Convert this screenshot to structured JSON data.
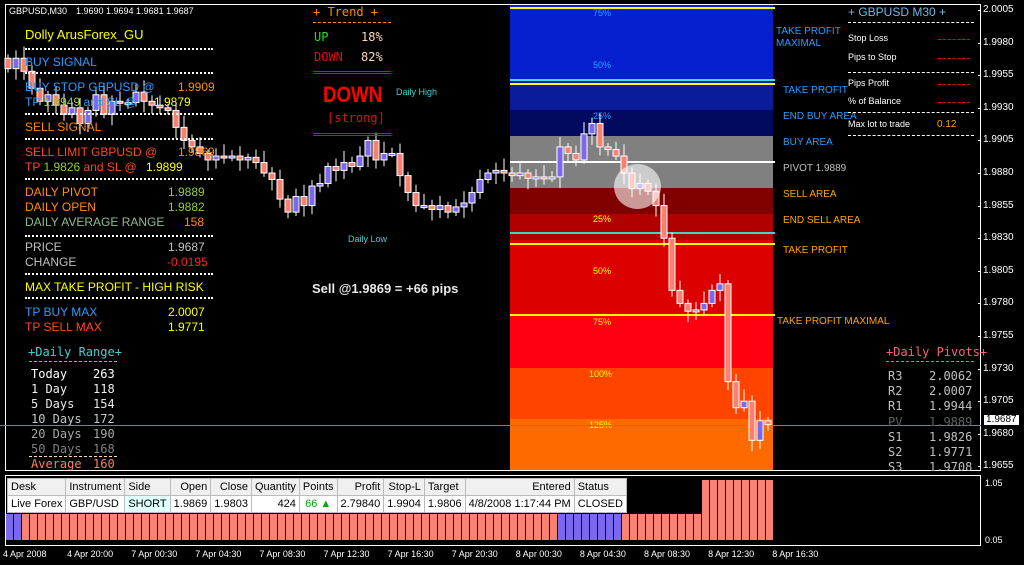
{
  "header": {
    "symbol": "GBPUSD,M30",
    "ohlc": "1.9690 1.9694 1.9681 1.9687"
  },
  "signals": {
    "title": "Dolly ArusForex_GU",
    "buy_signal": "BUY SIGNAL",
    "buy_stop_label": "BUY STOP GBPUSD  @",
    "buy_stop_value": "1.9909",
    "buy_tp_label": "TP",
    "buy_tp_value": "1.9949",
    "buy_sl_label": "and SL @",
    "buy_sl_value": "1.9879",
    "sell_signal": "SELL SIGNAL",
    "sell_limit_label": "SELL LIMIT GBPUSD  @",
    "sell_limit_value": "1.9869",
    "sell_tp_label": "TP",
    "sell_tp_value": "1.9826",
    "sell_sl_label": "and SL @",
    "sell_sl_value": "1.9899",
    "daily_pivot_label": "DAILY PIVOT",
    "daily_pivot": "1.9889",
    "daily_open_label": "DAILY OPEN",
    "daily_open": "1.9882",
    "dar_label": "DAILY AVERAGE RANGE",
    "dar": "158",
    "price_label": "PRICE",
    "price": "1.9687",
    "change_label": "CHANGE",
    "change": "-0.0195",
    "max_tp_label": "MAX TAKE PROFIT - HIGH RISK",
    "tp_buy_max_label": "TP BUY MAX",
    "tp_buy_max": "2.0007",
    "tp_sell_max_label": "TP SELL MAX",
    "tp_sell_max": "1.9771"
  },
  "daily_range": {
    "title": "+Daily Range+",
    "rows": [
      {
        "label": "Today",
        "value": "263"
      },
      {
        "label": "1 Day",
        "value": "118"
      },
      {
        "label": "5 Days",
        "value": "154"
      },
      {
        "label": "10 Days",
        "value": "172"
      },
      {
        "label": "20 Days",
        "value": "190"
      },
      {
        "label": "50 Days",
        "value": "168"
      },
      {
        "label": "Average",
        "value": "160"
      }
    ]
  },
  "trend": {
    "title": "+   Trend   +",
    "up_label": "UP",
    "up": "18%",
    "down_label": "DOWN",
    "down": "82%",
    "direction": "DOWN",
    "strength": "[strong]"
  },
  "annotations": {
    "daily_high": "Daily High",
    "daily_low": "Daily Low",
    "trade_result": "Sell @1.9869 = +66 pips"
  },
  "zones": {
    "pct": [
      "75%",
      "50%",
      "25%",
      "25%",
      "50%",
      "75%",
      "100%",
      "125%"
    ],
    "labels": {
      "tp_max_buy": "TAKE PROFIT MAXIMAL",
      "tp_buy": "TAKE PROFIT",
      "end_buy": "END BUY AREA",
      "buy": "BUY AREA",
      "pivot": "PIVOT 1.9889",
      "sell": "SELL AREA",
      "end_sell": "END SELL AREA",
      "tp_sell": "TAKE PROFIT",
      "tp_max_sell": "TAKE PROFIT MAXIMAL"
    }
  },
  "risk_panel": {
    "title": "+  GBPUSD  M30  +",
    "stop_loss": "Stop Loss",
    "pips_to_stop": "Pips to Stop",
    "pips_profit": "Pips Profit",
    "pct_balance": "% of Balance",
    "max_lot_label": "Max lot to trade",
    "max_lot": "0.12"
  },
  "daily_pivots": {
    "title": "+Daily Pivots+",
    "rows": [
      {
        "label": "R3",
        "value": "2.0062"
      },
      {
        "label": "R2",
        "value": "2.0007"
      },
      {
        "label": "R1",
        "value": "1.9944"
      },
      {
        "label": "PV",
        "value": "1.9889"
      },
      {
        "label": "S1",
        "value": "1.9826"
      },
      {
        "label": "S2",
        "value": "1.9771"
      },
      {
        "label": "S3",
        "value": "1.9708"
      }
    ]
  },
  "price_axis": {
    "ticks": [
      "2.0005",
      "1.9980",
      "1.9955",
      "1.9930",
      "1.9905",
      "1.9880",
      "1.9855",
      "1.9830",
      "1.9805",
      "1.9780",
      "1.9755",
      "1.9730",
      "1.9705",
      "1.9680",
      "1.9655"
    ],
    "current": "1.9687"
  },
  "sub_axis": {
    "top": "1.05",
    "bottom": "0.05"
  },
  "time_axis": [
    "4 Apr 2008",
    "4 Apr 20:00",
    "7 Apr 00:30",
    "7 Apr 04:30",
    "7 Apr 08:30",
    "7 Apr 12:30",
    "7 Apr 16:30",
    "7 Apr 20:30",
    "8 Apr 00:30",
    "8 Apr 04:30",
    "8 Apr 08:30",
    "8 Apr 12:30",
    "8 Apr 16:30"
  ],
  "trade_table": {
    "headers": [
      "Desk",
      "Instrument",
      "Side",
      "Open",
      "Close",
      "Quantity",
      "Points",
      "Profit",
      "Stop-L",
      "Target",
      "Entered",
      "Status"
    ],
    "row": [
      "Live Forex",
      "GBP/USD",
      "SHORT",
      "1.9869",
      "1.9803",
      "424",
      "66 ▲",
      "2.79840",
      "1.9904",
      "1.9806",
      "4/8/2008 1:17:44 PM",
      "CLOSED"
    ]
  },
  "colors": {
    "bull": "#7b68ee",
    "bear": "#fa8072",
    "buy_text": "#2a9cff",
    "sell_text": "#ff4a10",
    "tp_yellow": "#ffff00"
  },
  "chart_data": {
    "type": "candlestick",
    "ylim": [
      1.9655,
      2.0005
    ],
    "closes": [
      1.996,
      1.9968,
      1.9958,
      1.9945,
      1.9935,
      1.994,
      1.9932,
      1.9925,
      1.993,
      1.9918,
      1.9928,
      1.994,
      1.9925,
      1.9935,
      1.9934,
      1.9934,
      1.9942,
      1.9935,
      1.9932,
      1.993,
      1.9928,
      1.9915,
      1.9905,
      1.99,
      1.9895,
      1.989,
      1.9893,
      1.9892,
      1.9893,
      1.989,
      1.9892,
      1.9888,
      1.988,
      1.9875,
      1.986,
      1.985,
      1.9862,
      1.9855,
      1.987,
      1.9872,
      1.9885,
      1.9882,
      1.9888,
      1.9885,
      1.9893,
      1.9905,
      1.989,
      1.9895,
      1.9895,
      1.9878,
      1.9865,
      1.9855,
      1.9855,
      1.9852,
      1.9855,
      1.985,
      1.9854,
      1.9857,
      1.9865,
      1.9875,
      1.988,
      1.9882,
      1.988,
      1.9878,
      1.988,
      1.9876,
      1.9877,
      1.9876,
      1.9877,
      1.99,
      1.9895,
      1.989,
      1.991,
      1.9918,
      1.99,
      1.9898,
      1.9893,
      1.988,
      1.9868,
      1.9872,
      1.9866,
      1.9855,
      1.983,
      1.979,
      1.978,
      1.9774,
      1.9775,
      1.978,
      1.979,
      1.9795,
      1.972,
      1.97,
      1.9705,
      1.9675,
      1.969,
      1.9687
    ],
    "histogram_blue_ranges": [
      [
        0,
        1
      ],
      [
        69,
        76
      ]
    ]
  }
}
